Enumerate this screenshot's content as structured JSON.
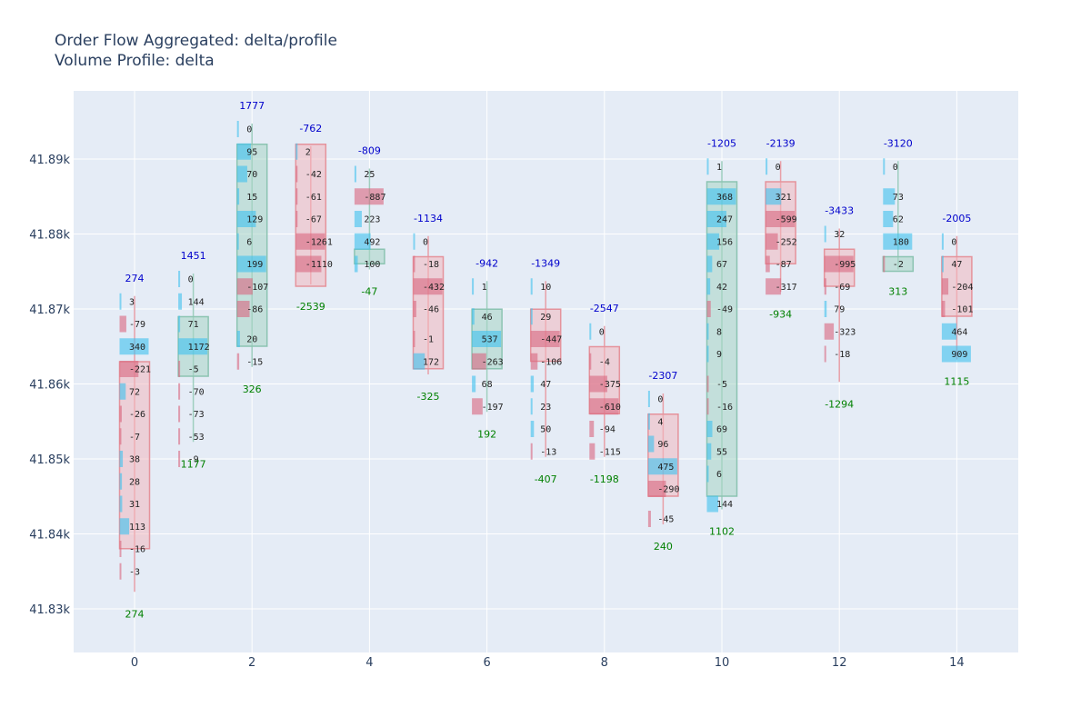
{
  "title": {
    "line1": "Order Flow Aggregated: delta/profile",
    "line2": "Volume Profile: delta"
  },
  "colors": {
    "plot_bg": "#e5ecf6",
    "grid": "#ffffff",
    "text": "#2a3f5f",
    "positive_bar": "#3ec1ef",
    "negative_bar": "#d9667f",
    "bull_box": "#a8d5c4",
    "bear_box": "#f2b8be",
    "top_label": "#0000cc",
    "bottom_label": "#008000"
  },
  "chart_data": {
    "type": "order_flow_footprint",
    "x_ticks": [
      "0",
      "2",
      "4",
      "6",
      "8",
      "10",
      "12",
      "14"
    ],
    "y_ticks": [
      "41.83k",
      "41.84k",
      "41.85k",
      "41.86k",
      "41.87k",
      "41.88k",
      "41.89k"
    ],
    "xlim": [
      -1,
      15
    ],
    "ylim": [
      41824.5,
      41899.5
    ],
    "price_step": 3,
    "candles": [
      {
        "x": 0,
        "open": 41862,
        "close": 41839,
        "high": 41871,
        "low": 41833,
        "top": "274",
        "bottom": "274",
        "levels": [
          [
            41871,
            3
          ],
          [
            41868,
            -79
          ],
          [
            41865,
            340
          ],
          [
            41862,
            -221
          ],
          [
            41859,
            72
          ],
          [
            41856,
            -26
          ],
          [
            41853,
            -7
          ],
          [
            41850,
            38
          ],
          [
            41847,
            28
          ],
          [
            41844,
            31
          ],
          [
            41841,
            113
          ],
          [
            41838,
            -16
          ],
          [
            41835,
            -3
          ]
        ]
      },
      {
        "x": 1,
        "open": 41862,
        "close": 41868,
        "high": 41874,
        "low": 41853,
        "top": "1451",
        "bottom": "1177",
        "levels": [
          [
            41874,
            0
          ],
          [
            41871,
            144
          ],
          [
            41868,
            71
          ],
          [
            41865,
            1172
          ],
          [
            41862,
            -5
          ],
          [
            41859,
            -70
          ],
          [
            41856,
            -73
          ],
          [
            41853,
            -53
          ],
          [
            41850,
            -9
          ]
        ]
      },
      {
        "x": 2,
        "open": 41866,
        "close": 41891,
        "high": 41894,
        "low": 41863,
        "top": "1777",
        "bottom": "326",
        "levels": [
          [
            41894,
            0
          ],
          [
            41891,
            95
          ],
          [
            41888,
            70
          ],
          [
            41885,
            15
          ],
          [
            41882,
            129
          ],
          [
            41879,
            6
          ],
          [
            41876,
            199
          ],
          [
            41873,
            -107
          ],
          [
            41870,
            -86
          ],
          [
            41866,
            20
          ],
          [
            41863,
            -15
          ]
        ]
      },
      {
        "x": 3,
        "open": 41891,
        "close": 41874,
        "high": 41891,
        "low": 41874,
        "top": "-762",
        "bottom": "-2539",
        "levels": [
          [
            41891,
            2
          ],
          [
            41888,
            -42
          ],
          [
            41885,
            -61
          ],
          [
            41882,
            -67
          ],
          [
            41879,
            -1261
          ],
          [
            41876,
            -1110
          ]
        ]
      },
      {
        "x": 4,
        "open": 41877,
        "close": 41877,
        "high": 41888,
        "low": 41876,
        "top": "-809",
        "bottom": "-47",
        "levels": [
          [
            41888,
            25
          ],
          [
            41885,
            -887
          ],
          [
            41882,
            223
          ],
          [
            41879,
            492
          ],
          [
            41876,
            100
          ]
        ]
      },
      {
        "x": 5,
        "open": 41876,
        "close": 41863,
        "high": 41879,
        "low": 41862,
        "top": "-1134",
        "bottom": "-325",
        "levels": [
          [
            41879,
            0
          ],
          [
            41876,
            -18
          ],
          [
            41873,
            -432
          ],
          [
            41870,
            -46
          ],
          [
            41866,
            -1
          ],
          [
            41863,
            172
          ]
        ]
      },
      {
        "x": 6,
        "open": 41863,
        "close": 41869,
        "high": 41873,
        "low": 41857,
        "top": "-942",
        "bottom": "192",
        "levels": [
          [
            41873,
            1
          ],
          [
            41869,
            46
          ],
          [
            41866,
            537
          ],
          [
            41863,
            -263
          ],
          [
            41860,
            68
          ],
          [
            41857,
            -197
          ]
        ]
      },
      {
        "x": 7,
        "open": 41869,
        "close": 41864,
        "high": 41873,
        "low": 41851,
        "top": "-1349",
        "bottom": "-407",
        "levels": [
          [
            41873,
            10
          ],
          [
            41869,
            29
          ],
          [
            41866,
            -447
          ],
          [
            41863,
            -106
          ],
          [
            41860,
            47
          ],
          [
            41857,
            23
          ],
          [
            41854,
            50
          ],
          [
            41851,
            -13
          ]
        ]
      },
      {
        "x": 8,
        "open": 41864,
        "close": 41857,
        "high": 41867,
        "low": 41851,
        "top": "-2547",
        "bottom": "-1198",
        "levels": [
          [
            41867,
            0
          ],
          [
            41863,
            -4
          ],
          [
            41860,
            -375
          ],
          [
            41857,
            -610
          ],
          [
            41854,
            -94
          ],
          [
            41851,
            -115
          ]
        ]
      },
      {
        "x": 9,
        "open": 41855,
        "close": 41846,
        "high": 41858,
        "low": 41842,
        "top": "-2307",
        "bottom": "240",
        "levels": [
          [
            41858,
            0
          ],
          [
            41855,
            4
          ],
          [
            41852,
            96
          ],
          [
            41849,
            475
          ],
          [
            41846,
            -290
          ],
          [
            41842,
            -45
          ]
        ]
      },
      {
        "x": 10,
        "open": 41846,
        "close": 41886,
        "high": 41889,
        "low": 41844,
        "top": "-1205",
        "bottom": "1102",
        "levels": [
          [
            41889,
            1
          ],
          [
            41885,
            368
          ],
          [
            41882,
            247
          ],
          [
            41879,
            156
          ],
          [
            41876,
            67
          ],
          [
            41873,
            42
          ],
          [
            41870,
            -49
          ],
          [
            41867,
            8
          ],
          [
            41864,
            9
          ],
          [
            41860,
            -5
          ],
          [
            41857,
            -16
          ],
          [
            41854,
            69
          ],
          [
            41851,
            55
          ],
          [
            41848,
            6
          ],
          [
            41844,
            144
          ]
        ]
      },
      {
        "x": 11,
        "open": 41886,
        "close": 41877,
        "high": 41889,
        "low": 41873,
        "top": "-2139",
        "bottom": "-934",
        "levels": [
          [
            41889,
            0
          ],
          [
            41885,
            321
          ],
          [
            41882,
            -599
          ],
          [
            41879,
            -252
          ],
          [
            41876,
            -87
          ],
          [
            41873,
            -317
          ]
        ]
      },
      {
        "x": 12,
        "open": 41877,
        "close": 41874,
        "high": 41880,
        "low": 41861,
        "top": "-3433",
        "bottom": "-1294",
        "levels": [
          [
            41880,
            32
          ],
          [
            41876,
            -995
          ],
          [
            41873,
            -69
          ],
          [
            41870,
            79
          ],
          [
            41867,
            -323
          ],
          [
            41864,
            -18
          ]
        ]
      },
      {
        "x": 13,
        "open": 41876,
        "close": 41876,
        "high": 41889,
        "low": 41876,
        "top": "-3120",
        "bottom": "313",
        "levels": [
          [
            41889,
            0
          ],
          [
            41885,
            73
          ],
          [
            41882,
            62
          ],
          [
            41879,
            180
          ],
          [
            41876,
            -2
          ]
        ]
      },
      {
        "x": 14,
        "open": 41876,
        "close": 41870,
        "high": 41879,
        "low": 41864,
        "top": "-2005",
        "bottom": "1115",
        "levels": [
          [
            41879,
            0
          ],
          [
            41876,
            47
          ],
          [
            41873,
            -204
          ],
          [
            41870,
            -101
          ],
          [
            41867,
            464
          ],
          [
            41864,
            909
          ]
        ]
      }
    ]
  }
}
